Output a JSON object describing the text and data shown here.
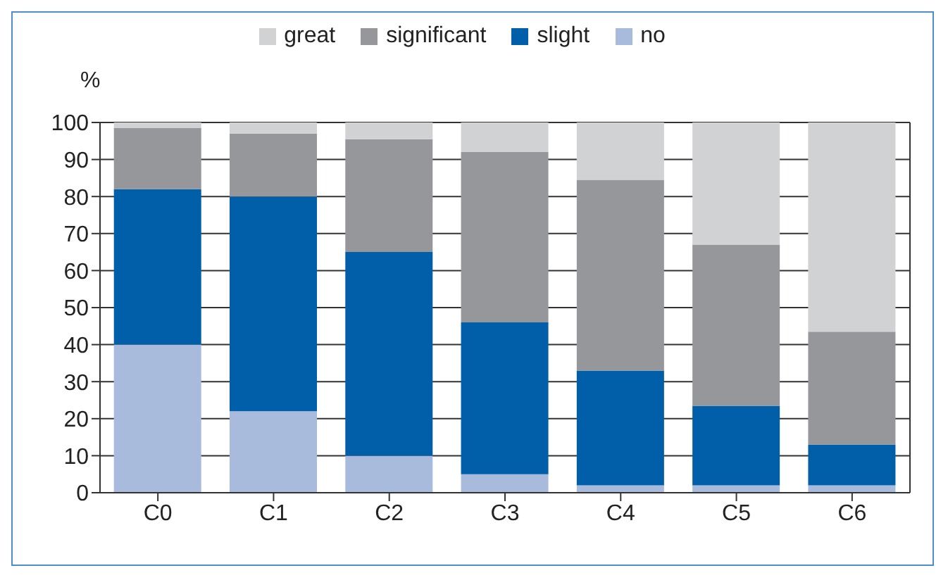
{
  "chart_data": {
    "type": "bar",
    "stacked": true,
    "ylabel": "%",
    "categories": [
      "C0",
      "C1",
      "C2",
      "C3",
      "C4",
      "C5",
      "C6"
    ],
    "series": [
      {
        "name": "no",
        "color": "#a9bbdc",
        "values": [
          40,
          22,
          10,
          5,
          2,
          2,
          2
        ]
      },
      {
        "name": "slight",
        "color": "#005fa8",
        "values": [
          42,
          58,
          55,
          41,
          31,
          21.5,
          11
        ]
      },
      {
        "name": "significant",
        "color": "#96979b",
        "values": [
          16.5,
          17,
          30.5,
          46,
          51.5,
          43.5,
          30.5
        ]
      },
      {
        "name": "great",
        "color": "#d1d2d4",
        "values": [
          1.5,
          3,
          4.5,
          8,
          15.5,
          33,
          56.5
        ]
      }
    ],
    "ylim": [
      0,
      100
    ],
    "yticks": [
      0,
      10,
      20,
      30,
      40,
      50,
      60,
      70,
      80,
      90,
      100
    ],
    "grid": "y",
    "legend": "top"
  }
}
